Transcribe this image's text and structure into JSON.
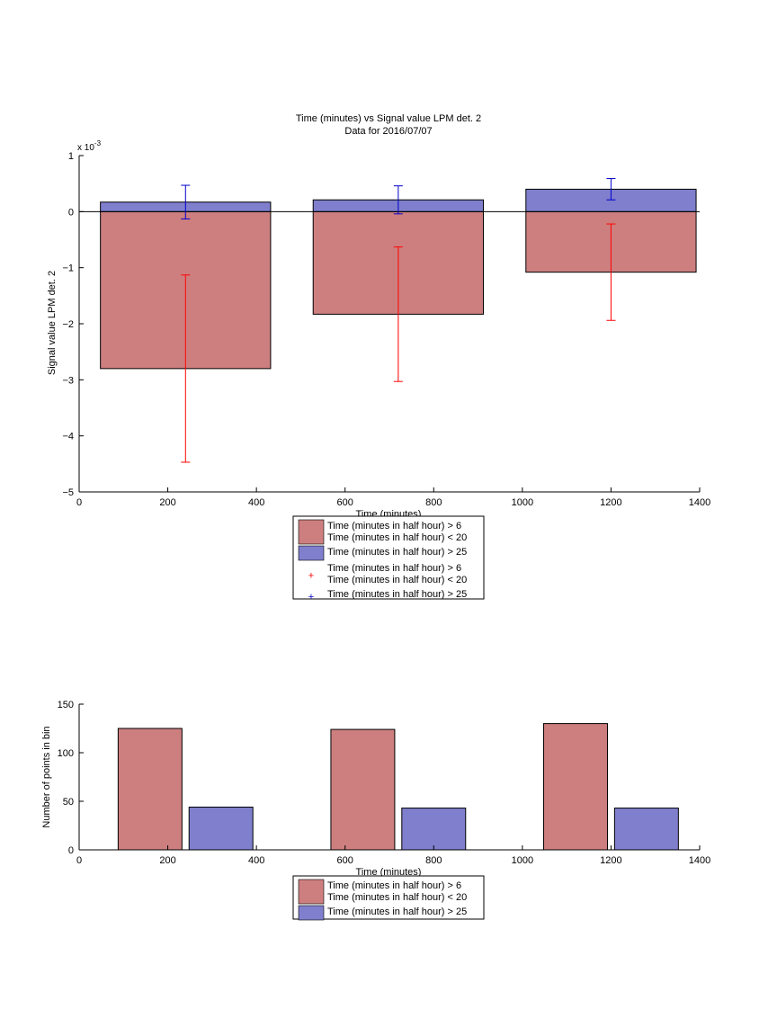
{
  "chart_data": [
    {
      "type": "bar",
      "title": "Time (minutes) vs Signal value LPM det. 2",
      "subtitle": "Data for 2016/07/07",
      "xlabel": "Time (minutes)",
      "ylabel": "Signal value LPM det. 2",
      "exponent_label": "x 10",
      "exponent_power": "-3",
      "xlim": [
        0,
        1400
      ],
      "ylim": [
        -5,
        1
      ],
      "x_ticks": [
        "0",
        "200",
        "400",
        "600",
        "800",
        "1000",
        "1200",
        "1400"
      ],
      "y_ticks": [
        "−5",
        "−4",
        "−3",
        "−2",
        "−1",
        "0",
        "1"
      ],
      "bar_centers": [
        240,
        720,
        1200
      ],
      "bar_width": 384,
      "series": [
        {
          "name_line1": "Time (minutes in half hour) > 6",
          "name_line2": "Time (minutes in half hour) < 20",
          "color": "#cd7f7f",
          "values": [
            -2.8,
            -1.83,
            -1.08
          ],
          "errors": [
            1.67,
            1.2,
            0.86
          ],
          "error_color": "#ff0000"
        },
        {
          "name_line1": "Time (minutes in half hour) > 25",
          "name_line2": "",
          "color": "#7f7fcd",
          "values": [
            0.17,
            0.21,
            0.4
          ],
          "errors": [
            0.3,
            0.25,
            0.19
          ],
          "error_color": "#0000cc"
        }
      ],
      "legend": [
        {
          "kind": "patch",
          "color": "#cd7f7f",
          "line1": "Time (minutes in half hour) > 6",
          "line2": "Time (minutes in half hour) < 20"
        },
        {
          "kind": "patch",
          "color": "#7f7fcd",
          "line1": "Time (minutes in half hour) > 25",
          "line2": ""
        },
        {
          "kind": "marker",
          "color": "#ff0000",
          "line1": "Time (minutes in half hour) > 6",
          "line2": "Time (minutes in half hour) < 20"
        },
        {
          "kind": "marker",
          "color": "#0000cc",
          "line1": "Time (minutes in half hour) > 25",
          "line2": ""
        }
      ],
      "legend_placement": "below",
      "grid": false
    },
    {
      "type": "bar",
      "title": "",
      "xlabel": "Time (minutes)",
      "ylabel": "Number of points in bin",
      "xlim": [
        0,
        1400
      ],
      "ylim": [
        0,
        150
      ],
      "x_ticks": [
        "0",
        "200",
        "400",
        "600",
        "800",
        "1000",
        "1200",
        "1400"
      ],
      "y_ticks": [
        "0",
        "50",
        "100",
        "150"
      ],
      "series": [
        {
          "name_line1": "Time (minutes in half hour) > 6",
          "name_line2": "Time (minutes in half hour) < 20",
          "color": "#cd7f7f",
          "x": [
            160,
            640,
            1120
          ],
          "values": [
            125,
            124,
            130
          ]
        },
        {
          "name_line1": "Time (minutes in half hour) > 25",
          "name_line2": "",
          "color": "#7f7fcd",
          "x": [
            320,
            800,
            1280
          ],
          "values": [
            44,
            43,
            43
          ]
        }
      ],
      "bar_width": 144,
      "legend": [
        {
          "kind": "patch",
          "color": "#cd7f7f",
          "line1": "Time (minutes in half hour) > 6",
          "line2": "Time (minutes in half hour) < 20"
        },
        {
          "kind": "patch",
          "color": "#7f7fcd",
          "line1": "Time (minutes in half hour) > 25",
          "line2": ""
        }
      ],
      "legend_placement": "below",
      "grid": false
    }
  ]
}
